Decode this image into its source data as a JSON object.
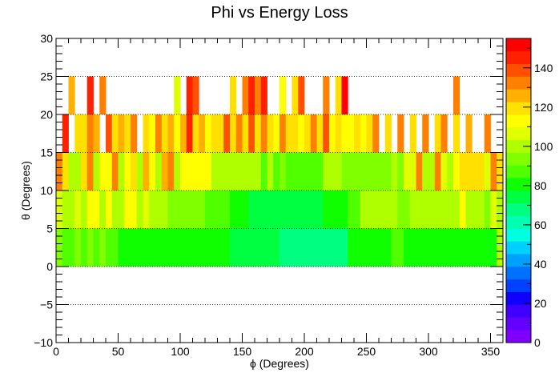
{
  "chart_data": {
    "type": "heatmap",
    "title": "Phi vs Energy Loss",
    "xlabel": "ϕ (Degrees)",
    "ylabel": "θ (Degrees)",
    "xlim": [
      0,
      360
    ],
    "ylim": [
      -10,
      30
    ],
    "zlim": [
      0,
      155
    ],
    "x_ticks": [
      0,
      50,
      100,
      150,
      200,
      250,
      300,
      350
    ],
    "y_ticks": [
      -10,
      -5,
      0,
      5,
      10,
      15,
      20,
      25,
      30
    ],
    "z_ticks": [
      0,
      20,
      40,
      60,
      80,
      100,
      120,
      140
    ],
    "y_gridlines": [
      -5,
      0,
      5,
      10,
      15,
      20,
      25
    ],
    "grid": "horizontal dotted",
    "colorbar": "right",
    "palette": [
      "#8000ff",
      "#6400ff",
      "#4000ff",
      "#1000ff",
      "#0040ff",
      "#0070ff",
      "#00a0ff",
      "#00d0ff",
      "#00ffe0",
      "#00ffb0",
      "#00ff80",
      "#00ff40",
      "#10ff00",
      "#50ff00",
      "#80ff00",
      "#b0ff00",
      "#e0ff00",
      "#ffff00",
      "#ffe000",
      "#ffb000",
      "#ff8000",
      "#ff5000",
      "#ff2000",
      "#ff0000"
    ],
    "rows": [
      {
        "y0": 0,
        "y1": 5,
        "cells": [
          {
            "x0": 0,
            "x1": 5,
            "z": 96
          },
          {
            "x0": 5,
            "x1": 15,
            "z": 87
          },
          {
            "x0": 15,
            "x1": 20,
            "z": 95
          },
          {
            "x0": 20,
            "x1": 25,
            "z": 85
          },
          {
            "x0": 25,
            "x1": 30,
            "z": 96
          },
          {
            "x0": 30,
            "x1": 35,
            "z": 85
          },
          {
            "x0": 35,
            "x1": 40,
            "z": 93
          },
          {
            "x0": 40,
            "x1": 50,
            "z": 85
          },
          {
            "x0": 50,
            "x1": 140,
            "z": 80
          },
          {
            "x0": 140,
            "x1": 180,
            "z": 72
          },
          {
            "x0": 180,
            "x1": 185,
            "z": 65
          },
          {
            "x0": 185,
            "x1": 235,
            "z": 68
          },
          {
            "x0": 235,
            "x1": 270,
            "z": 80
          },
          {
            "x0": 270,
            "x1": 280,
            "z": 85
          },
          {
            "x0": 280,
            "x1": 355,
            "z": 82
          },
          {
            "x0": 355,
            "x1": 360,
            "z": 98
          }
        ]
      },
      {
        "y0": 5,
        "y1": 10,
        "cells": [
          {
            "x0": 0,
            "x1": 5,
            "z": 108
          },
          {
            "x0": 5,
            "x1": 15,
            "z": 97
          },
          {
            "x0": 15,
            "x1": 20,
            "z": 107
          },
          {
            "x0": 20,
            "x1": 25,
            "z": 100
          },
          {
            "x0": 25,
            "x1": 35,
            "z": 115
          },
          {
            "x0": 35,
            "x1": 40,
            "z": 97
          },
          {
            "x0": 40,
            "x1": 45,
            "z": 113
          },
          {
            "x0": 45,
            "x1": 55,
            "z": 100
          },
          {
            "x0": 55,
            "x1": 65,
            "z": 110
          },
          {
            "x0": 65,
            "x1": 70,
            "z": 98
          },
          {
            "x0": 70,
            "x1": 75,
            "z": 108
          },
          {
            "x0": 75,
            "x1": 90,
            "z": 97
          },
          {
            "x0": 90,
            "x1": 115,
            "z": 95
          },
          {
            "x0": 115,
            "x1": 120,
            "z": 92
          },
          {
            "x0": 120,
            "x1": 140,
            "z": 85
          },
          {
            "x0": 140,
            "x1": 155,
            "z": 82
          },
          {
            "x0": 155,
            "x1": 215,
            "z": 73
          },
          {
            "x0": 215,
            "x1": 235,
            "z": 82
          },
          {
            "x0": 235,
            "x1": 245,
            "z": 88
          },
          {
            "x0": 245,
            "x1": 275,
            "z": 97
          },
          {
            "x0": 275,
            "x1": 285,
            "z": 92
          },
          {
            "x0": 285,
            "x1": 325,
            "z": 97
          },
          {
            "x0": 325,
            "x1": 330,
            "z": 115
          },
          {
            "x0": 330,
            "x1": 345,
            "z": 103
          },
          {
            "x0": 345,
            "x1": 350,
            "z": 95
          },
          {
            "x0": 350,
            "x1": 355,
            "z": 108
          },
          {
            "x0": 355,
            "x1": 360,
            "z": 100
          }
        ]
      },
      {
        "y0": 10,
        "y1": 15,
        "cells": [
          {
            "x0": 0,
            "x1": 5,
            "z": 133
          },
          {
            "x0": 5,
            "x1": 10,
            "z": 118
          },
          {
            "x0": 10,
            "x1": 20,
            "z": 100
          },
          {
            "x0": 20,
            "x1": 25,
            "z": 120
          },
          {
            "x0": 25,
            "x1": 30,
            "z": 132
          },
          {
            "x0": 30,
            "x1": 35,
            "z": 100
          },
          {
            "x0": 35,
            "x1": 45,
            "z": 112
          },
          {
            "x0": 45,
            "x1": 50,
            "z": 133
          },
          {
            "x0": 50,
            "x1": 55,
            "z": 100
          },
          {
            "x0": 55,
            "x1": 60,
            "z": 112
          },
          {
            "x0": 60,
            "x1": 65,
            "z": 118
          },
          {
            "x0": 65,
            "x1": 70,
            "z": 100
          },
          {
            "x0": 70,
            "x1": 75,
            "z": 128
          },
          {
            "x0": 75,
            "x1": 80,
            "z": 110
          },
          {
            "x0": 80,
            "x1": 85,
            "z": 100
          },
          {
            "x0": 85,
            "x1": 90,
            "z": 123
          },
          {
            "x0": 90,
            "x1": 95,
            "z": 132
          },
          {
            "x0": 95,
            "x1": 100,
            "z": 100
          },
          {
            "x0": 100,
            "x1": 125,
            "z": 110
          },
          {
            "x0": 125,
            "x1": 165,
            "z": 100
          },
          {
            "x0": 165,
            "x1": 170,
            "z": 90
          },
          {
            "x0": 170,
            "x1": 175,
            "z": 100
          },
          {
            "x0": 175,
            "x1": 180,
            "z": 88
          },
          {
            "x0": 180,
            "x1": 185,
            "z": 95
          },
          {
            "x0": 185,
            "x1": 215,
            "z": 90
          },
          {
            "x0": 215,
            "x1": 230,
            "z": 97
          },
          {
            "x0": 230,
            "x1": 270,
            "z": 95
          },
          {
            "x0": 270,
            "x1": 275,
            "z": 100
          },
          {
            "x0": 275,
            "x1": 280,
            "z": 93
          },
          {
            "x0": 280,
            "x1": 290,
            "z": 105
          },
          {
            "x0": 290,
            "x1": 295,
            "z": 132
          },
          {
            "x0": 295,
            "x1": 305,
            "z": 100
          },
          {
            "x0": 305,
            "x1": 310,
            "z": 133
          },
          {
            "x0": 310,
            "x1": 315,
            "z": 105
          },
          {
            "x0": 315,
            "x1": 320,
            "z": 98
          },
          {
            "x0": 320,
            "x1": 325,
            "z": 113
          },
          {
            "x0": 325,
            "x1": 345,
            "z": 118
          },
          {
            "x0": 345,
            "x1": 350,
            "z": 108
          },
          {
            "x0": 350,
            "x1": 355,
            "z": 133
          },
          {
            "x0": 355,
            "x1": 360,
            "z": 118
          }
        ]
      },
      {
        "y0": 15,
        "y1": 20,
        "cells": [
          {
            "x0": 5,
            "x1": 10,
            "z": 148
          },
          {
            "x0": 15,
            "x1": 20,
            "z": 118
          },
          {
            "x0": 20,
            "x1": 25,
            "z": 118
          },
          {
            "x0": 25,
            "x1": 30,
            "z": 133
          },
          {
            "x0": 30,
            "x1": 35,
            "z": 123
          },
          {
            "x0": 40,
            "x1": 45,
            "z": 140
          },
          {
            "x0": 45,
            "x1": 50,
            "z": 118
          },
          {
            "x0": 50,
            "x1": 55,
            "z": 123
          },
          {
            "x0": 55,
            "x1": 60,
            "z": 118
          },
          {
            "x0": 60,
            "x1": 65,
            "z": 133
          },
          {
            "x0": 70,
            "x1": 75,
            "z": 118
          },
          {
            "x0": 75,
            "x1": 80,
            "z": 113
          },
          {
            "x0": 80,
            "x1": 85,
            "z": 133
          },
          {
            "x0": 85,
            "x1": 90,
            "z": 118
          },
          {
            "x0": 90,
            "x1": 95,
            "z": 128
          },
          {
            "x0": 95,
            "x1": 100,
            "z": 113
          },
          {
            "x0": 100,
            "x1": 105,
            "z": 123
          },
          {
            "x0": 105,
            "x1": 110,
            "z": 148
          },
          {
            "x0": 110,
            "x1": 115,
            "z": 118
          },
          {
            "x0": 115,
            "x1": 120,
            "z": 128
          },
          {
            "x0": 120,
            "x1": 125,
            "z": 110
          },
          {
            "x0": 125,
            "x1": 135,
            "z": 118
          },
          {
            "x0": 135,
            "x1": 140,
            "z": 140
          },
          {
            "x0": 140,
            "x1": 145,
            "z": 118
          },
          {
            "x0": 145,
            "x1": 150,
            "z": 133
          },
          {
            "x0": 150,
            "x1": 155,
            "z": 118
          },
          {
            "x0": 155,
            "x1": 160,
            "z": 140
          },
          {
            "x0": 160,
            "x1": 165,
            "z": 118
          },
          {
            "x0": 165,
            "x1": 170,
            "z": 133
          },
          {
            "x0": 170,
            "x1": 175,
            "z": 118
          },
          {
            "x0": 175,
            "x1": 180,
            "z": 110
          },
          {
            "x0": 180,
            "x1": 185,
            "z": 133
          },
          {
            "x0": 185,
            "x1": 195,
            "z": 118
          },
          {
            "x0": 195,
            "x1": 200,
            "z": 110
          },
          {
            "x0": 200,
            "x1": 205,
            "z": 118
          },
          {
            "x0": 205,
            "x1": 210,
            "z": 133
          },
          {
            "x0": 210,
            "x1": 215,
            "z": 118
          },
          {
            "x0": 215,
            "x1": 220,
            "z": 140
          },
          {
            "x0": 220,
            "x1": 225,
            "z": 113
          },
          {
            "x0": 225,
            "x1": 230,
            "z": 118
          },
          {
            "x0": 230,
            "x1": 240,
            "z": 110
          },
          {
            "x0": 240,
            "x1": 245,
            "z": 118
          },
          {
            "x0": 245,
            "x1": 250,
            "z": 113
          },
          {
            "x0": 250,
            "x1": 255,
            "z": 118
          },
          {
            "x0": 255,
            "x1": 260,
            "z": 133
          },
          {
            "x0": 265,
            "x1": 270,
            "z": 118
          },
          {
            "x0": 275,
            "x1": 280,
            "z": 133
          },
          {
            "x0": 285,
            "x1": 290,
            "z": 118
          },
          {
            "x0": 295,
            "x1": 300,
            "z": 133
          },
          {
            "x0": 305,
            "x1": 310,
            "z": 118
          },
          {
            "x0": 310,
            "x1": 315,
            "z": 133
          },
          {
            "x0": 320,
            "x1": 325,
            "z": 118
          },
          {
            "x0": 330,
            "x1": 335,
            "z": 123
          },
          {
            "x0": 345,
            "x1": 350,
            "z": 133
          }
        ]
      },
      {
        "y0": 20,
        "y1": 25,
        "cells": [
          {
            "x0": 10,
            "x1": 15,
            "z": 128
          },
          {
            "x0": 25,
            "x1": 30,
            "z": 148
          },
          {
            "x0": 35,
            "x1": 40,
            "z": 133
          },
          {
            "x0": 95,
            "x1": 100,
            "z": 108
          },
          {
            "x0": 105,
            "x1": 110,
            "z": 148
          },
          {
            "x0": 110,
            "x1": 115,
            "z": 140
          },
          {
            "x0": 140,
            "x1": 145,
            "z": 118
          },
          {
            "x0": 150,
            "x1": 155,
            "z": 133
          },
          {
            "x0": 155,
            "x1": 160,
            "z": 148
          },
          {
            "x0": 160,
            "x1": 165,
            "z": 133
          },
          {
            "x0": 165,
            "x1": 170,
            "z": 148
          },
          {
            "x0": 180,
            "x1": 185,
            "z": 113
          },
          {
            "x0": 190,
            "x1": 195,
            "z": 118
          },
          {
            "x0": 195,
            "x1": 200,
            "z": 140
          },
          {
            "x0": 215,
            "x1": 220,
            "z": 133
          },
          {
            "x0": 225,
            "x1": 230,
            "z": 118
          },
          {
            "x0": 230,
            "x1": 235,
            "z": 152
          },
          {
            "x0": 320,
            "x1": 325,
            "z": 133
          }
        ]
      }
    ]
  }
}
